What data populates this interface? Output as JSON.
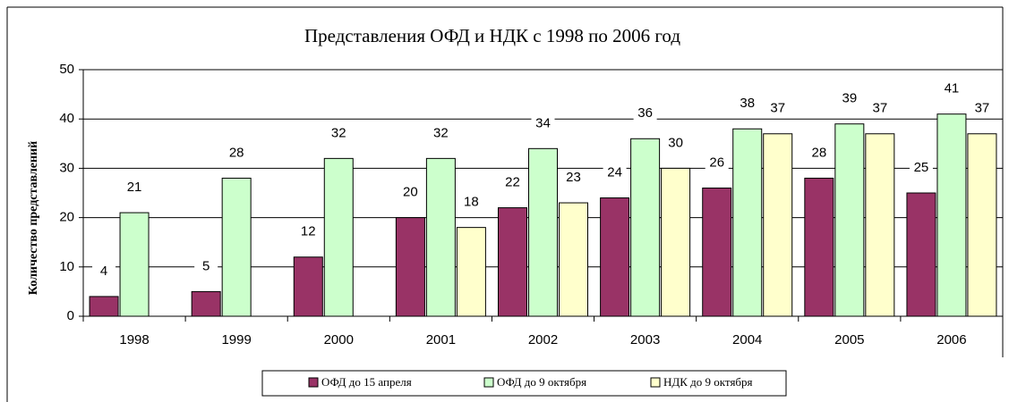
{
  "chart_data": {
    "type": "bar",
    "title": "Представления ОФД и НДК с 1998 по 2006 год",
    "y_label": "Количество представлений",
    "categories": [
      "1998",
      "1999",
      "2000",
      "2001",
      "2002",
      "2003",
      "2004",
      "2005",
      "2006"
    ],
    "series": [
      {
        "name": "ОФД до 15 апреля",
        "color": "#993366",
        "values": [
          4,
          5,
          12,
          20,
          22,
          24,
          26,
          28,
          25
        ]
      },
      {
        "name": "ОФД до 9 октября",
        "color": "#ccffcc",
        "values": [
          21,
          28,
          32,
          32,
          34,
          36,
          38,
          39,
          41
        ]
      },
      {
        "name": "НДК до 9 октября",
        "color": "#ffffcc",
        "values": [
          null,
          null,
          null,
          18,
          23,
          30,
          37,
          37,
          37
        ]
      }
    ],
    "ylim": [
      0,
      50
    ],
    "yticks": [
      0,
      10,
      20,
      30,
      40,
      50
    ],
    "grid": true,
    "legend": "bottom"
  }
}
